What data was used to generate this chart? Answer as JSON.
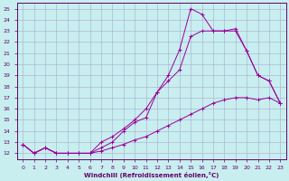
{
  "xlabel": "Windchill (Refroidissement éolien,°C)",
  "background_color": "#c8eef0",
  "line_color": "#990099",
  "grid_color": "#aaaacc",
  "spine_color": "#660066",
  "xlim": [
    -0.5,
    23.5
  ],
  "ylim": [
    11.5,
    25.5
  ],
  "xticks": [
    0,
    1,
    2,
    3,
    4,
    5,
    6,
    7,
    8,
    9,
    10,
    11,
    12,
    13,
    14,
    15,
    16,
    17,
    18,
    19,
    20,
    21,
    22,
    23
  ],
  "yticks": [
    12,
    13,
    14,
    15,
    16,
    17,
    18,
    19,
    20,
    21,
    22,
    23,
    24,
    25
  ],
  "line1_x": [
    0,
    1,
    2,
    3,
    4,
    5,
    6,
    7,
    8,
    9,
    10,
    11,
    12,
    13,
    14,
    15,
    16,
    17,
    18,
    19,
    20,
    21,
    22,
    23
  ],
  "line1_y": [
    12.8,
    12.0,
    12.5,
    12.0,
    12.0,
    12.0,
    12.0,
    12.5,
    13.0,
    14.0,
    14.8,
    15.2,
    17.5,
    19.0,
    21.3,
    25.0,
    24.5,
    23.0,
    23.0,
    23.0,
    21.2,
    19.0,
    18.5,
    16.5
  ],
  "line2_x": [
    0,
    1,
    2,
    3,
    4,
    5,
    6,
    7,
    8,
    9,
    10,
    11,
    12,
    13,
    14,
    15,
    16,
    17,
    18,
    19,
    20,
    21,
    22,
    23
  ],
  "line2_y": [
    12.8,
    12.0,
    12.5,
    12.0,
    12.0,
    12.0,
    12.0,
    13.0,
    13.5,
    14.2,
    15.0,
    16.0,
    17.5,
    18.5,
    19.5,
    22.5,
    23.0,
    23.0,
    23.0,
    23.2,
    21.2,
    19.0,
    18.5,
    16.5
  ],
  "line3_x": [
    0,
    1,
    2,
    3,
    4,
    5,
    6,
    7,
    8,
    9,
    10,
    11,
    12,
    13,
    14,
    15,
    16,
    17,
    18,
    19,
    20,
    21,
    22,
    23
  ],
  "line3_y": [
    12.8,
    12.0,
    12.5,
    12.0,
    12.0,
    12.0,
    12.0,
    12.2,
    12.5,
    12.8,
    13.2,
    13.5,
    14.0,
    14.5,
    15.0,
    15.5,
    16.0,
    16.5,
    16.8,
    17.0,
    17.0,
    16.8,
    17.0,
    16.5
  ]
}
